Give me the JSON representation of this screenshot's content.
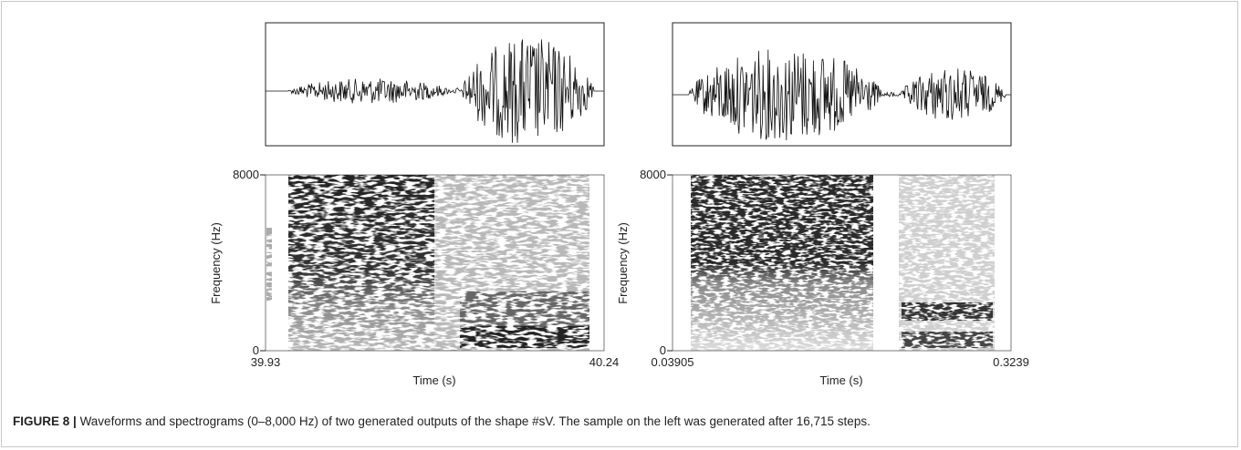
{
  "figure": {
    "panels": [
      {
        "y_top_label": "8000",
        "y_bottom_label": "0",
        "y_axis_label": "Frequency (Hz)",
        "x_start_label": "39.93",
        "x_end_label": "40.24",
        "x_axis_label": "Time (s)"
      },
      {
        "y_top_label": "8000",
        "y_bottom_label": "0",
        "y_axis_label": "Frequency (Hz)",
        "x_start_label": "0.03905",
        "x_end_label": "0.3239",
        "x_axis_label": "Time (s)"
      }
    ]
  },
  "caption": {
    "label": "FIGURE 8 |",
    "text": "Waveforms and spectrograms (0–8,000 Hz) of two generated outputs of the shape #sV. The sample on the left was generated after 16,715 steps."
  }
}
